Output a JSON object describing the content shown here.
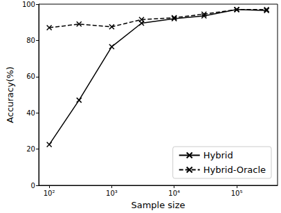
{
  "chart_data": {
    "type": "line",
    "x_label": "Sample size",
    "y_label": "Accuracy(%)",
    "x": [
      100,
      300,
      1000,
      3000,
      10000,
      30000,
      100000,
      300000
    ],
    "series": [
      {
        "name": "Hybrid",
        "color": "#000000",
        "marker": "x",
        "line_style": "solid",
        "values": [
          22.5,
          47,
          76.5,
          89.5,
          92,
          93.5,
          97,
          96.5
        ]
      },
      {
        "name": "Hybrid-Oracle",
        "color": "#000000",
        "marker": "x",
        "line_style": "dashed",
        "values": [
          87,
          89,
          87.5,
          91.5,
          92.5,
          94.5,
          97,
          97
        ]
      }
    ],
    "xlim": [
      68,
      450000
    ],
    "xticks": [
      {
        "value": 100,
        "label": "10²"
      },
      {
        "value": 1000,
        "label": "10³"
      },
      {
        "value": 10000,
        "label": "10⁴"
      },
      {
        "value": 100000,
        "label": "10⁵"
      }
    ],
    "ylim": [
      0,
      100
    ],
    "yticks": [
      0,
      20,
      40,
      60,
      80,
      100
    ],
    "log": "x",
    "grid": false,
    "legend": "lower right"
  }
}
